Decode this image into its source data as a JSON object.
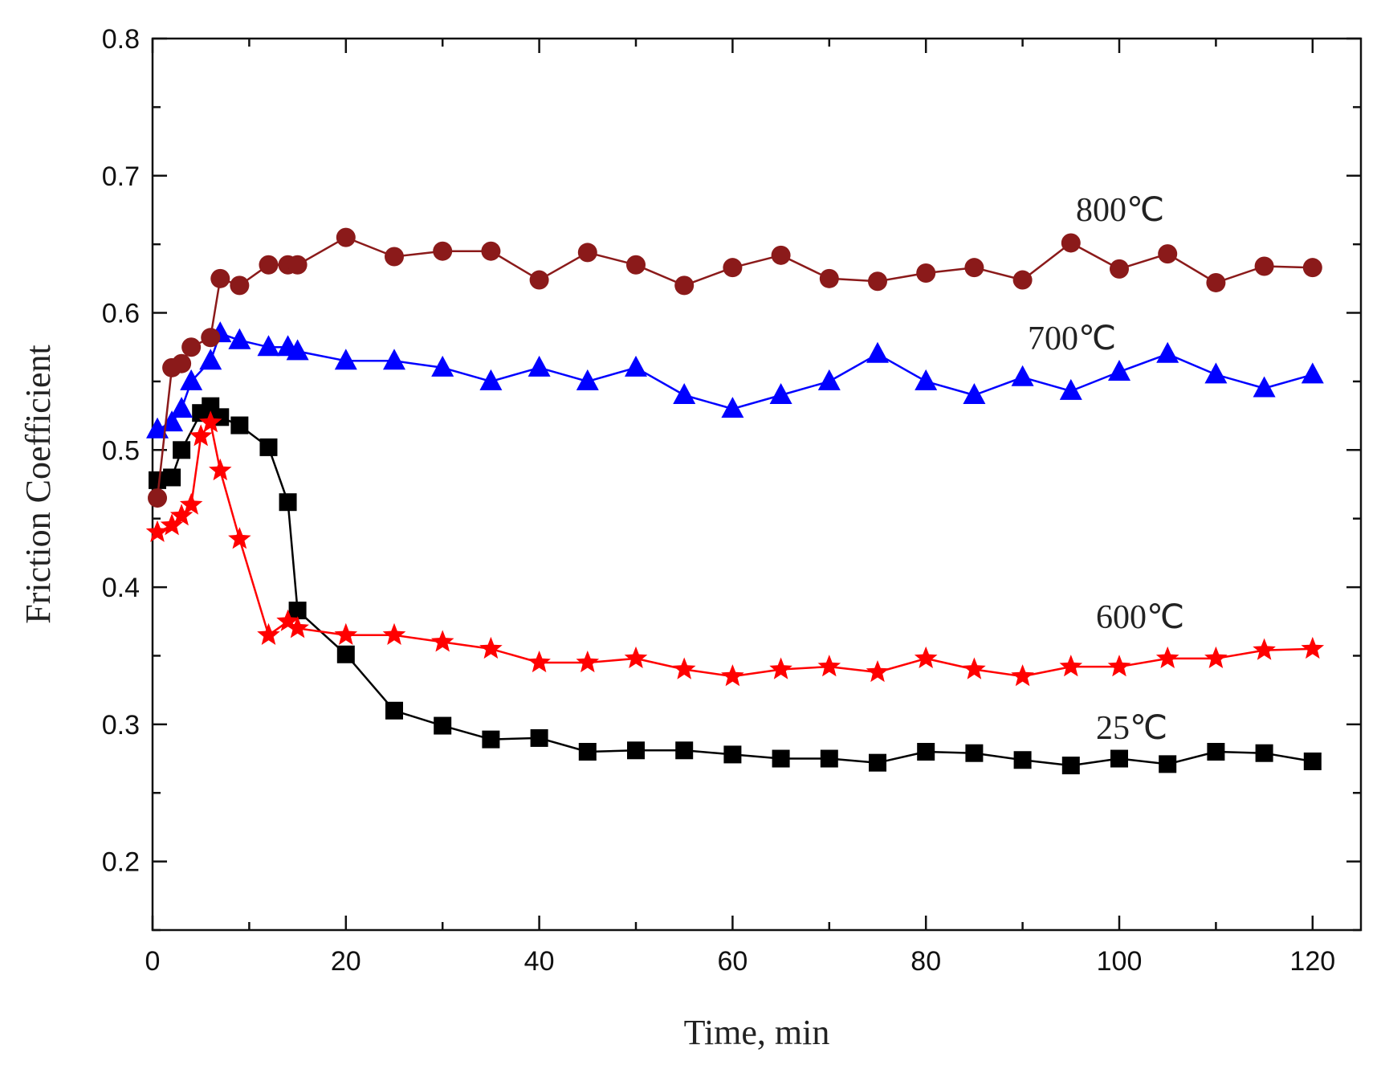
{
  "chart_data": {
    "type": "line",
    "title": "",
    "xlabel": "Time, min",
    "ylabel": "Friction Coefficient",
    "xlim": [
      0,
      125
    ],
    "ylim": [
      0.15,
      0.8
    ],
    "xticks": [
      0,
      20,
      40,
      60,
      80,
      100,
      120
    ],
    "xtick_labels": [
      "0",
      "20",
      "40",
      "60",
      "80",
      "100",
      "120"
    ],
    "yticks": [
      0.2,
      0.3,
      0.4,
      0.5,
      0.6,
      0.7,
      0.8
    ],
    "ytick_labels": [
      "0.2",
      "0.3",
      "0.4",
      "0.5",
      "0.6",
      "0.7",
      "0.8"
    ],
    "grid": false,
    "legend": "none (series labelled inline)",
    "series": [
      {
        "name": "25℃",
        "label": "25℃",
        "color": "#000000",
        "marker": "square",
        "x": [
          0.5,
          2,
          3,
          5,
          6,
          7,
          9,
          12,
          14,
          15,
          20,
          25,
          30,
          35,
          40,
          45,
          50,
          55,
          60,
          65,
          70,
          75,
          80,
          85,
          90,
          95,
          100,
          105,
          110,
          115,
          120
        ],
        "y": [
          0.478,
          0.48,
          0.5,
          0.527,
          0.532,
          0.524,
          0.518,
          0.502,
          0.462,
          0.383,
          0.351,
          0.31,
          0.299,
          0.289,
          0.29,
          0.28,
          0.281,
          0.281,
          0.278,
          0.275,
          0.275,
          0.272,
          0.28,
          0.279,
          0.274,
          0.27,
          0.275,
          0.271,
          0.28,
          0.279,
          0.273
        ]
      },
      {
        "name": "600℃",
        "label": "600℃",
        "color": "#ff0000",
        "marker": "star",
        "x": [
          0.5,
          2,
          3,
          4,
          5,
          6,
          7,
          9,
          12,
          14,
          15,
          20,
          25,
          30,
          35,
          40,
          45,
          50,
          55,
          60,
          65,
          70,
          75,
          80,
          85,
          90,
          95,
          100,
          105,
          110,
          115,
          120
        ],
        "y": [
          0.44,
          0.445,
          0.452,
          0.46,
          0.51,
          0.52,
          0.485,
          0.435,
          0.365,
          0.375,
          0.37,
          0.365,
          0.365,
          0.36,
          0.355,
          0.345,
          0.345,
          0.348,
          0.34,
          0.335,
          0.34,
          0.342,
          0.338,
          0.348,
          0.34,
          0.335,
          0.342,
          0.342,
          0.348,
          0.348,
          0.354,
          0.355
        ]
      },
      {
        "name": "700℃",
        "label": "700℃",
        "color": "#0000ff",
        "marker": "triangle",
        "x": [
          0.5,
          2,
          3,
          4,
          6,
          7,
          9,
          12,
          14,
          15,
          20,
          25,
          30,
          35,
          40,
          45,
          50,
          55,
          60,
          65,
          70,
          75,
          80,
          85,
          90,
          95,
          100,
          105,
          110,
          115,
          120
        ],
        "y": [
          0.515,
          0.52,
          0.53,
          0.55,
          0.565,
          0.585,
          0.58,
          0.575,
          0.575,
          0.572,
          0.565,
          0.565,
          0.56,
          0.55,
          0.56,
          0.55,
          0.56,
          0.54,
          0.53,
          0.54,
          0.55,
          0.57,
          0.55,
          0.54,
          0.553,
          0.543,
          0.557,
          0.57,
          0.555,
          0.545,
          0.555
        ]
      },
      {
        "name": "800℃",
        "label": "800℃",
        "color": "#8b1a1a",
        "marker": "circle",
        "x": [
          0.5,
          2,
          3,
          4,
          6,
          7,
          9,
          12,
          14,
          15,
          20,
          25,
          30,
          35,
          40,
          45,
          50,
          55,
          60,
          65,
          70,
          75,
          80,
          85,
          90,
          95,
          100,
          105,
          110,
          115,
          120
        ],
        "y": [
          0.465,
          0.56,
          0.563,
          0.575,
          0.582,
          0.625,
          0.62,
          0.635,
          0.635,
          0.635,
          0.655,
          0.641,
          0.645,
          0.645,
          0.624,
          0.644,
          0.635,
          0.62,
          0.633,
          0.642,
          0.625,
          0.623,
          0.629,
          0.633,
          0.624,
          0.651,
          0.632,
          0.643,
          0.622,
          0.634,
          0.633
        ]
      }
    ]
  }
}
